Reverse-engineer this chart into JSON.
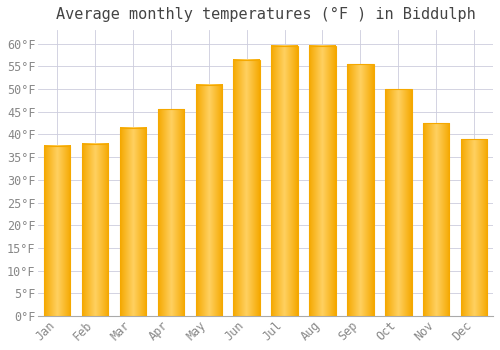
{
  "title": "Average monthly temperatures (°F ) in Biddulph",
  "months": [
    "Jan",
    "Feb",
    "Mar",
    "Apr",
    "May",
    "Jun",
    "Jul",
    "Aug",
    "Sep",
    "Oct",
    "Nov",
    "Dec"
  ],
  "values": [
    37.5,
    38.0,
    41.5,
    45.5,
    51.0,
    56.5,
    59.5,
    59.5,
    55.5,
    50.0,
    42.5,
    39.0
  ],
  "bar_color_center": "#FFD060",
  "bar_color_edge": "#F5A800",
  "background_color": "#FFFFFF",
  "grid_color": "#CCCCDD",
  "title_fontsize": 11,
  "tick_fontsize": 8.5,
  "ylim": [
    0,
    63
  ],
  "yticks": [
    0,
    5,
    10,
    15,
    20,
    25,
    30,
    35,
    40,
    45,
    50,
    55,
    60
  ]
}
